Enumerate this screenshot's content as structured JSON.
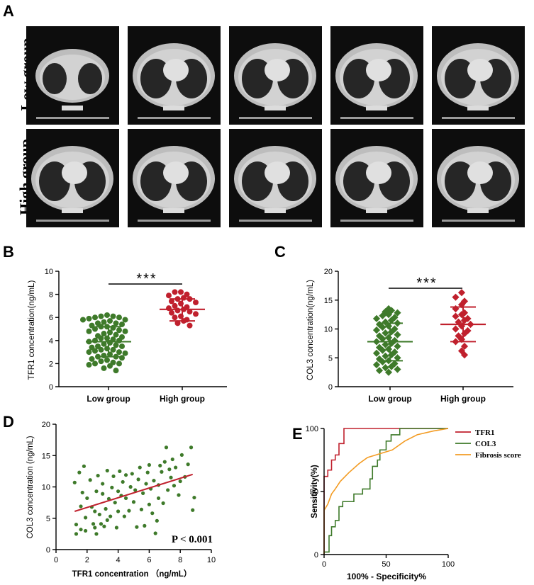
{
  "panels": {
    "A": "A",
    "B": "B",
    "C": "C",
    "D": "D",
    "E": "E"
  },
  "ct_rows": {
    "low": "Low group",
    "high": "High group"
  },
  "colors": {
    "green": "#3e7a2a",
    "red": "#c0202d",
    "orange": "#f39c24"
  },
  "chart_data": [
    {
      "id": "B",
      "type": "scatter",
      "categories": [
        "Low group",
        "High group"
      ],
      "ylabel": "TFR1 concentration(ng/mL)",
      "ylim": [
        0,
        10
      ],
      "yticks": [
        "0",
        "2",
        "4",
        "6",
        "8",
        "10"
      ],
      "significance": "***",
      "groups": [
        {
          "name": "Low group",
          "mean": 3.9,
          "sd_low": 2.6,
          "sd_high": 5.2,
          "values": [
            6.2,
            6.1,
            6.1,
            6.0,
            6.0,
            5.9,
            5.8,
            5.8,
            5.7,
            5.6,
            5.5,
            5.5,
            5.4,
            5.3,
            5.2,
            5.2,
            5.1,
            5.0,
            4.9,
            4.8,
            4.8,
            4.7,
            4.6,
            4.5,
            4.4,
            4.3,
            4.2,
            4.2,
            4.1,
            4.0,
            4.0,
            3.9,
            3.8,
            3.7,
            3.6,
            3.5,
            3.5,
            3.4,
            3.3,
            3.2,
            3.2,
            3.1,
            3.0,
            3.0,
            2.9,
            2.8,
            2.7,
            2.6,
            2.6,
            2.5,
            2.4,
            2.3,
            2.2,
            2.1,
            2.0,
            2.0,
            1.9,
            1.8,
            1.6,
            1.4
          ]
        },
        {
          "name": "High group",
          "mean": 6.7,
          "sd_low": 5.7,
          "sd_high": 7.6,
          "values": [
            8.2,
            8.2,
            8.0,
            7.9,
            7.7,
            7.6,
            7.6,
            7.4,
            7.3,
            7.2,
            7.0,
            6.9,
            6.8,
            6.7,
            6.6,
            6.5,
            6.4,
            6.3,
            6.1,
            6.0,
            5.8,
            5.7,
            5.5,
            5.3
          ]
        }
      ]
    },
    {
      "id": "C",
      "type": "scatter",
      "categories": [
        "Low group",
        "High group"
      ],
      "ylabel": "COL3 concentration(ng/mL)",
      "ylim": [
        0,
        20
      ],
      "yticks": [
        "0",
        "5",
        "10",
        "15",
        "20"
      ],
      "significance": "***",
      "groups": [
        {
          "name": "Low group",
          "mean": 7.8,
          "sd_low": 4.5,
          "sd_high": 11.0,
          "values": [
            13.5,
            13.2,
            13.0,
            12.8,
            12.5,
            12.3,
            12.0,
            11.8,
            11.5,
            11.2,
            11.0,
            10.8,
            10.5,
            10.3,
            10.0,
            9.8,
            9.5,
            9.3,
            9.0,
            8.8,
            8.5,
            8.3,
            8.0,
            7.8,
            7.5,
            7.3,
            7.0,
            6.8,
            6.5,
            6.3,
            6.0,
            5.8,
            5.5,
            5.3,
            5.0,
            4.8,
            4.5,
            4.3,
            4.0,
            3.8,
            3.5,
            3.3,
            3.0,
            2.8,
            2.5
          ]
        },
        {
          "name": "High group",
          "mean": 10.8,
          "sd_low": 7.8,
          "sd_high": 13.8,
          "values": [
            16.3,
            15.5,
            14.8,
            14.2,
            13.5,
            12.8,
            12.5,
            12.2,
            11.8,
            11.5,
            11.2,
            10.8,
            10.5,
            10.0,
            9.7,
            9.2,
            8.8,
            8.2,
            7.8,
            7.0,
            6.2,
            5.5
          ]
        }
      ]
    },
    {
      "id": "D",
      "type": "scatter",
      "xlabel": "TFR1 concentration （ng/mL）",
      "ylabel": "COL3 concentration (ng/mL)",
      "xlim": [
        0,
        10
      ],
      "ylim": [
        0,
        20
      ],
      "xticks": [
        "0",
        "2",
        "4",
        "6",
        "8",
        "10"
      ],
      "yticks": [
        "0",
        "5",
        "10",
        "15",
        "20"
      ],
      "annotation": "P < 0.001",
      "fit": {
        "x1": 1.2,
        "y1": 6.1,
        "x2": 8.8,
        "y2": 12.0
      },
      "points": [
        [
          1.2,
          10.7
        ],
        [
          1.3,
          4.0
        ],
        [
          1.3,
          2.5
        ],
        [
          1.5,
          12.3
        ],
        [
          1.6,
          6.9
        ],
        [
          1.6,
          3.2
        ],
        [
          1.7,
          9.1
        ],
        [
          1.8,
          13.3
        ],
        [
          1.9,
          5.1
        ],
        [
          1.9,
          3.0
        ],
        [
          2.0,
          8.2
        ],
        [
          2.2,
          11.1
        ],
        [
          2.3,
          6.8
        ],
        [
          2.4,
          4.1
        ],
        [
          2.5,
          3.5
        ],
        [
          2.5,
          6.1
        ],
        [
          2.6,
          9.3
        ],
        [
          2.6,
          2.5
        ],
        [
          2.7,
          11.8
        ],
        [
          2.8,
          5.6
        ],
        [
          2.9,
          4.1
        ],
        [
          3.0,
          8.9
        ],
        [
          3.0,
          10.5
        ],
        [
          3.1,
          3.7
        ],
        [
          3.2,
          6.5
        ],
        [
          3.3,
          12.6
        ],
        [
          3.3,
          4.7
        ],
        [
          3.4,
          8.1
        ],
        [
          3.5,
          5.3
        ],
        [
          3.6,
          9.9
        ],
        [
          3.7,
          11.7
        ],
        [
          3.8,
          7.5
        ],
        [
          3.9,
          3.5
        ],
        [
          4.0,
          9.3
        ],
        [
          4.0,
          6.1
        ],
        [
          4.1,
          12.5
        ],
        [
          4.2,
          8.6
        ],
        [
          4.3,
          10.8
        ],
        [
          4.4,
          5.3
        ],
        [
          4.5,
          11.9
        ],
        [
          4.5,
          8.2
        ],
        [
          4.7,
          6.2
        ],
        [
          4.8,
          10.0
        ],
        [
          4.9,
          12.1
        ],
        [
          5.0,
          7.6
        ],
        [
          5.1,
          9.5
        ],
        [
          5.2,
          3.6
        ],
        [
          5.3,
          11.2
        ],
        [
          5.4,
          13.1
        ],
        [
          5.5,
          6.4
        ],
        [
          5.6,
          9.0
        ],
        [
          5.7,
          3.8
        ],
        [
          5.8,
          10.5
        ],
        [
          5.9,
          12.3
        ],
        [
          6.0,
          7.2
        ],
        [
          6.0,
          13.5
        ],
        [
          6.1,
          9.7
        ],
        [
          6.2,
          5.8
        ],
        [
          6.3,
          11.0
        ],
        [
          6.4,
          2.6
        ],
        [
          6.5,
          4.6
        ],
        [
          6.6,
          10.3
        ],
        [
          6.6,
          8.2
        ],
        [
          6.7,
          13.4
        ],
        [
          6.8,
          12.4
        ],
        [
          6.9,
          7.4
        ],
        [
          7.0,
          14.0
        ],
        [
          7.1,
          16.3
        ],
        [
          7.2,
          9.5
        ],
        [
          7.3,
          12.8
        ],
        [
          7.4,
          11.5
        ],
        [
          7.5,
          14.4
        ],
        [
          7.6,
          10.2
        ],
        [
          7.7,
          13.1
        ],
        [
          7.9,
          8.7
        ],
        [
          8.0,
          10.9
        ],
        [
          8.1,
          15.1
        ],
        [
          8.3,
          11.6
        ],
        [
          8.5,
          13.6
        ],
        [
          8.7,
          16.3
        ],
        [
          8.8,
          6.3
        ],
        [
          8.9,
          8.3
        ]
      ]
    },
    {
      "id": "E",
      "type": "line",
      "xlabel": "100% - Specificity%",
      "ylabel": "Sensitivity(%)",
      "xlim": [
        0,
        100
      ],
      "ylim": [
        0,
        100
      ],
      "xticks": [
        "0",
        "50",
        "100"
      ],
      "yticks": [
        "0",
        "50",
        "100"
      ],
      "series": [
        {
          "name": "TFR1",
          "color": "#c0202d",
          "points": [
            [
              0,
              0
            ],
            [
              0,
              38
            ],
            [
              0,
              58
            ],
            [
              0,
              62
            ],
            [
              3,
              62
            ],
            [
              3,
              67
            ],
            [
              6,
              67
            ],
            [
              6,
              75
            ],
            [
              9,
              75
            ],
            [
              9,
              79
            ],
            [
              12,
              79
            ],
            [
              12,
              88
            ],
            [
              16,
              88
            ],
            [
              16,
              100
            ],
            [
              100,
              100
            ]
          ]
        },
        {
          "name": "COL3",
          "color": "#3e7a2a",
          "points": [
            [
              0,
              0
            ],
            [
              0,
              2
            ],
            [
              4,
              2
            ],
            [
              4,
              15
            ],
            [
              6,
              15
            ],
            [
              6,
              22
            ],
            [
              9,
              22
            ],
            [
              9,
              27
            ],
            [
              12,
              27
            ],
            [
              12,
              38
            ],
            [
              15,
              38
            ],
            [
              15,
              42
            ],
            [
              24,
              42
            ],
            [
              24,
              48
            ],
            [
              31,
              48
            ],
            [
              31,
              52
            ],
            [
              37,
              52
            ],
            [
              37,
              60
            ],
            [
              39,
              60
            ],
            [
              39,
              70
            ],
            [
              43,
              70
            ],
            [
              43,
              75
            ],
            [
              45,
              75
            ],
            [
              45,
              83
            ],
            [
              50,
              83
            ],
            [
              50,
              90
            ],
            [
              54,
              90
            ],
            [
              54,
              95
            ],
            [
              61,
              95
            ],
            [
              61,
              100
            ],
            [
              100,
              100
            ]
          ]
        },
        {
          "name": "Fibrosis score",
          "color": "#f39c24",
          "points": [
            [
              0,
              0
            ],
            [
              0,
              35
            ],
            [
              3,
              40
            ],
            [
              6,
              48
            ],
            [
              9,
              52
            ],
            [
              13,
              58
            ],
            [
              20,
              65
            ],
            [
              28,
              72
            ],
            [
              35,
              77
            ],
            [
              45,
              80
            ],
            [
              55,
              83
            ],
            [
              65,
              90
            ],
            [
              75,
              95
            ],
            [
              88,
              98
            ],
            [
              100,
              100
            ]
          ]
        }
      ]
    }
  ]
}
